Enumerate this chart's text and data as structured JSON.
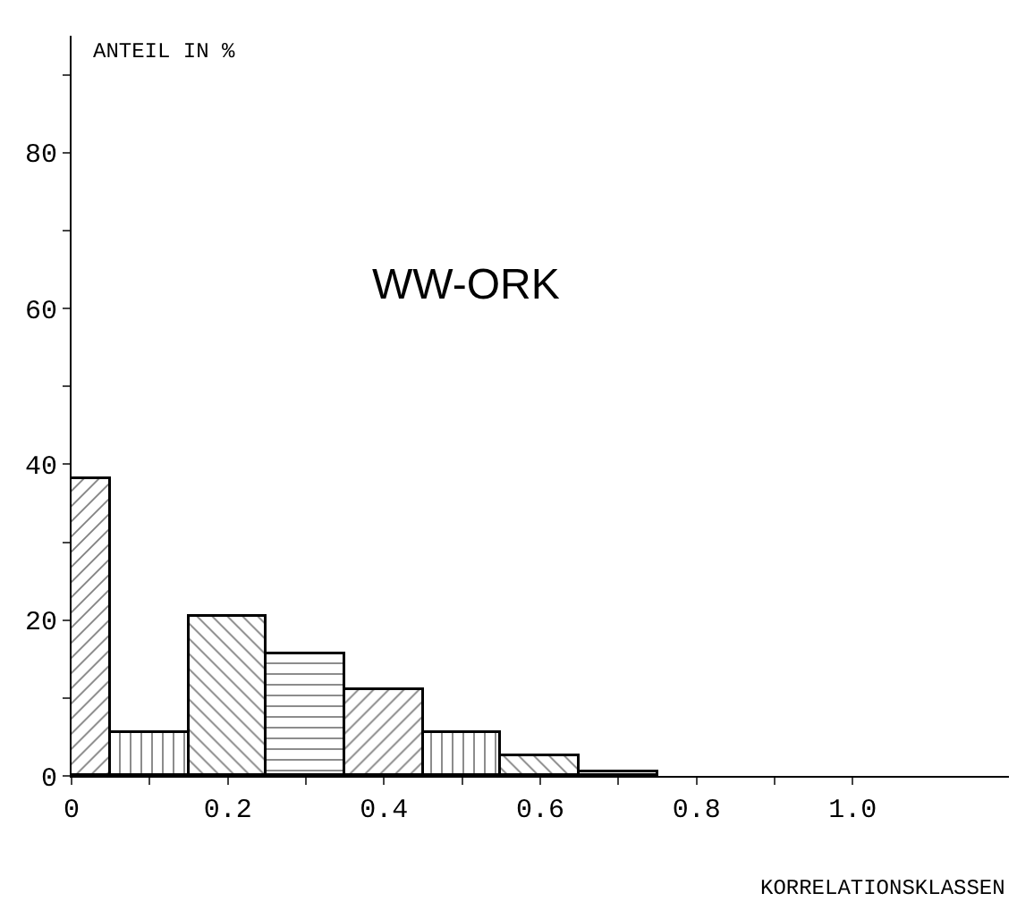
{
  "chart_data": {
    "type": "histogram",
    "title": "WW-ORK",
    "xlabel": "KORRELATIONSKLASSEN",
    "ylabel": "ANTEIL IN %",
    "bins": [
      0,
      0.05,
      0.15,
      0.25,
      0.35,
      0.45,
      0.55,
      0.65,
      0.75
    ],
    "values": [
      38,
      5.5,
      20.5,
      15.5,
      11,
      5.5,
      2.5,
      0.5
    ],
    "color": "#000000",
    "xlim": [
      0,
      1.2
    ],
    "xticks": [
      0,
      {
        "value": 0.1,
        "label": null
      },
      0.2,
      {
        "value": 0.3,
        "label": null
      },
      0.4,
      {
        "value": 0.5,
        "label": null
      },
      0.6,
      {
        "value": 0.7,
        "label": null
      },
      0.8,
      {
        "value": 0.9,
        "label": null
      },
      {
        "value": 1,
        "label": "1.0"
      }
    ],
    "ylim": [
      0,
      95
    ],
    "yticks": [
      0,
      {
        "value": 10,
        "label": null
      },
      20,
      {
        "value": 30,
        "label": null
      },
      40,
      {
        "value": 50,
        "label": null
      },
      60,
      {
        "value": 70,
        "label": null
      },
      80,
      {
        "value": 90,
        "label": null
      }
    ]
  }
}
